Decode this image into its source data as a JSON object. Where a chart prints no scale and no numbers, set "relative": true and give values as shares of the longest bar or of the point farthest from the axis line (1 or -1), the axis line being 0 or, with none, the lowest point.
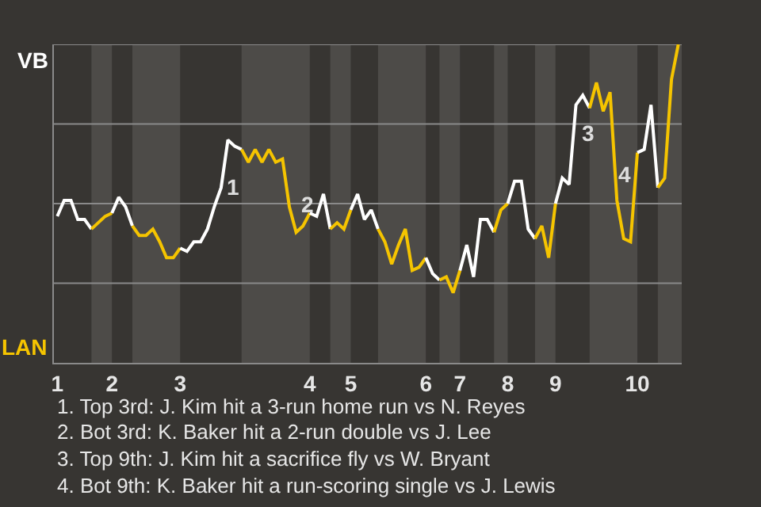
{
  "chart_data": {
    "type": "line",
    "categories": [
      "1",
      null,
      null,
      null,
      null,
      null,
      null,
      null,
      "2",
      null,
      null,
      null,
      null,
      null,
      null,
      null,
      null,
      null,
      "3",
      null,
      null,
      null,
      null,
      null,
      null,
      null,
      null,
      null,
      null,
      null,
      null,
      null,
      null,
      null,
      null,
      null,
      null,
      "4",
      null,
      null,
      null,
      null,
      null,
      "5",
      null,
      null,
      null,
      null,
      null,
      null,
      null,
      null,
      null,
      null,
      "6",
      null,
      null,
      null,
      null,
      "7",
      null,
      null,
      null,
      null,
      null,
      null,
      "8",
      null,
      null,
      null,
      null,
      null,
      null,
      "9",
      null,
      null,
      null,
      null,
      null,
      null,
      null,
      null,
      null,
      null,
      null,
      "10",
      null,
      null,
      null,
      null,
      null,
      null
    ],
    "relative": true,
    "series": [
      {
        "name": "VB",
        "color": "#ffffff",
        "values": [
          0.46,
          0.51,
          0.51,
          0.45,
          0.45,
          0.42,
          null,
          null,
          null,
          null,
          null,
          null,
          null,
          null,
          null,
          null,
          null,
          null,
          null,
          null,
          null,
          null,
          null,
          null,
          null,
          null,
          null,
          null,
          null,
          null,
          null,
          null,
          null,
          null,
          null,
          null,
          null,
          null,
          null,
          null,
          null,
          null,
          null,
          null,
          null,
          null,
          null,
          null,
          null,
          null,
          null,
          null,
          null,
          null,
          null,
          null,
          null,
          null,
          null,
          null,
          null,
          null,
          null,
          null,
          null,
          null,
          null,
          null,
          null,
          null,
          null,
          null,
          null,
          null,
          null,
          null,
          null,
          null,
          null,
          null,
          null,
          null,
          null,
          null,
          null,
          null,
          null,
          null,
          null,
          null,
          null,
          null
        ]
      },
      {
        "name": "LAN",
        "color": "#f5c400",
        "values": [
          null,
          null,
          null,
          null,
          null,
          0.42,
          0.44,
          0.46,
          0.47,
          null,
          null,
          null,
          null,
          null,
          null,
          null,
          null,
          null,
          null,
          null,
          null,
          null,
          null,
          null,
          null,
          null,
          null,
          null,
          null,
          null,
          null,
          null,
          null,
          null,
          null,
          null,
          null,
          null,
          null,
          null,
          null,
          null,
          null,
          null,
          null,
          null,
          null,
          null,
          null,
          null,
          null,
          null,
          null,
          null,
          null,
          null,
          null,
          null,
          null,
          null,
          null,
          null,
          null,
          null,
          null,
          null,
          null,
          null,
          null,
          null,
          null,
          null,
          null,
          null,
          null,
          null,
          null,
          null,
          null,
          null,
          null,
          null,
          null,
          null,
          null,
          null,
          null,
          null,
          null,
          null,
          null,
          null
        ]
      },
      {
        "color": "#ffffff",
        "values": [
          null,
          null,
          null,
          null,
          null,
          null,
          null,
          null,
          0.47,
          0.52,
          0.49,
          0.43,
          null,
          null,
          null,
          null,
          null,
          null,
          null,
          null,
          null,
          null,
          null,
          null,
          null,
          null,
          null,
          null,
          null,
          null,
          null,
          null,
          null,
          null,
          null,
          null,
          null,
          null,
          null,
          null,
          null,
          null,
          null,
          null,
          null,
          null,
          null,
          null,
          null,
          null,
          null,
          null,
          null,
          null,
          null,
          null,
          null,
          null,
          null,
          null,
          null,
          null,
          null,
          null,
          null,
          null,
          null,
          null,
          null,
          null,
          null,
          null,
          null,
          null,
          null,
          null,
          null,
          null,
          null,
          null,
          null,
          null,
          null,
          null,
          null,
          null,
          null,
          null,
          null,
          null,
          null,
          null
        ]
      },
      {
        "color": "#f5c400",
        "values": [
          null,
          null,
          null,
          null,
          null,
          null,
          null,
          null,
          null,
          null,
          null,
          0.43,
          0.4,
          0.4,
          0.42,
          0.38,
          0.33,
          0.33,
          0.36,
          null,
          null,
          null,
          null,
          null,
          null,
          null,
          null,
          null,
          null,
          null,
          null,
          null,
          null,
          null,
          null,
          null,
          null,
          null,
          null,
          null,
          null,
          null,
          null,
          null,
          null,
          null,
          null,
          null,
          null,
          null,
          null,
          null,
          null,
          null,
          null,
          null,
          null,
          null,
          null,
          null,
          null,
          null,
          null,
          null,
          null,
          null,
          null,
          null,
          null,
          null,
          null,
          null,
          null,
          null,
          null,
          null,
          null,
          null,
          null,
          null,
          null,
          null,
          null,
          null,
          null,
          null,
          null,
          null,
          null,
          null,
          null,
          null
        ]
      },
      {
        "color": "#ffffff",
        "values": [
          null,
          null,
          null,
          null,
          null,
          null,
          null,
          null,
          null,
          null,
          null,
          null,
          null,
          null,
          null,
          null,
          null,
          null,
          0.36,
          0.35,
          0.38,
          0.38,
          0.42,
          0.49,
          0.55,
          0.7,
          0.68,
          0.67,
          null,
          null,
          null,
          null,
          null,
          null,
          null,
          null,
          null,
          null,
          null,
          null,
          null,
          null,
          null,
          null,
          null,
          null,
          null,
          null,
          null,
          null,
          null,
          null,
          null,
          null,
          null,
          null,
          null,
          null,
          null,
          null,
          null,
          null,
          null,
          null,
          null,
          null,
          null,
          null,
          null,
          null,
          null,
          null,
          null,
          null,
          null,
          null,
          null,
          null,
          null,
          null,
          null,
          null,
          null,
          null,
          null,
          null,
          null,
          null,
          null,
          null,
          null,
          null
        ]
      },
      {
        "color": "#f5c400",
        "values": [
          null,
          null,
          null,
          null,
          null,
          null,
          null,
          null,
          null,
          null,
          null,
          null,
          null,
          null,
          null,
          null,
          null,
          null,
          null,
          null,
          null,
          null,
          null,
          null,
          null,
          null,
          null,
          0.67,
          0.63,
          0.67,
          0.63,
          0.67,
          0.63,
          0.64,
          0.49,
          0.41,
          0.43,
          0.47,
          null,
          null,
          null,
          null,
          null,
          null,
          null,
          null,
          null,
          null,
          null,
          null,
          null,
          null,
          null,
          null,
          null,
          null,
          null,
          null,
          null,
          null,
          null,
          null,
          null,
          null,
          null,
          null,
          null,
          null,
          null,
          null,
          null,
          null,
          null,
          null,
          null,
          null,
          null,
          null,
          null,
          null,
          null,
          null,
          null,
          null,
          null,
          null,
          null,
          null,
          null,
          null,
          null,
          null
        ]
      },
      {
        "color": "#ffffff",
        "values": [
          null,
          null,
          null,
          null,
          null,
          null,
          null,
          null,
          null,
          null,
          null,
          null,
          null,
          null,
          null,
          null,
          null,
          null,
          null,
          null,
          null,
          null,
          null,
          null,
          null,
          null,
          null,
          null,
          null,
          null,
          null,
          null,
          null,
          null,
          null,
          null,
          null,
          0.47,
          0.46,
          0.53,
          0.42,
          null,
          null,
          null,
          null,
          null,
          null,
          null,
          null,
          null,
          null,
          null,
          null,
          null,
          null,
          null,
          null,
          null,
          null,
          null,
          null,
          null,
          null,
          null,
          null,
          null,
          null,
          null,
          null,
          null,
          null,
          null,
          null,
          null,
          null,
          null,
          null,
          null,
          null,
          null,
          null,
          null,
          null,
          null,
          null,
          null,
          null,
          null,
          null,
          null,
          null,
          null
        ]
      },
      {
        "color": "#f5c400",
        "values": [
          null,
          null,
          null,
          null,
          null,
          null,
          null,
          null,
          null,
          null,
          null,
          null,
          null,
          null,
          null,
          null,
          null,
          null,
          null,
          null,
          null,
          null,
          null,
          null,
          null,
          null,
          null,
          null,
          null,
          null,
          null,
          null,
          null,
          null,
          null,
          null,
          null,
          null,
          null,
          null,
          0.42,
          0.44,
          0.42,
          0.48,
          null,
          null,
          null,
          null,
          null,
          null,
          null,
          null,
          null,
          null,
          null,
          null,
          null,
          null,
          null,
          null,
          null,
          null,
          null,
          null,
          null,
          null,
          null,
          null,
          null,
          null,
          null,
          null,
          null,
          null,
          null,
          null,
          null,
          null,
          null,
          null,
          null,
          null,
          null,
          null,
          null,
          null,
          null,
          null,
          null,
          null,
          null,
          null
        ]
      },
      {
        "color": "#ffffff",
        "values": [
          null,
          null,
          null,
          null,
          null,
          null,
          null,
          null,
          null,
          null,
          null,
          null,
          null,
          null,
          null,
          null,
          null,
          null,
          null,
          null,
          null,
          null,
          null,
          null,
          null,
          null,
          null,
          null,
          null,
          null,
          null,
          null,
          null,
          null,
          null,
          null,
          null,
          null,
          null,
          null,
          null,
          null,
          null,
          0.48,
          0.53,
          0.45,
          0.48,
          0.42,
          null,
          null,
          null,
          null,
          null,
          null,
          null,
          null,
          null,
          null,
          null,
          null,
          null,
          null,
          null,
          null,
          null,
          null,
          null,
          null,
          null,
          null,
          null,
          null,
          null,
          null,
          null,
          null,
          null,
          null,
          null,
          null,
          null,
          null,
          null,
          null,
          null,
          null,
          null,
          null,
          null,
          null,
          null,
          null
        ]
      },
      {
        "color": "#f5c400",
        "values": [
          null,
          null,
          null,
          null,
          null,
          null,
          null,
          null,
          null,
          null,
          null,
          null,
          null,
          null,
          null,
          null,
          null,
          null,
          null,
          null,
          null,
          null,
          null,
          null,
          null,
          null,
          null,
          null,
          null,
          null,
          null,
          null,
          null,
          null,
          null,
          null,
          null,
          null,
          null,
          null,
          null,
          null,
          null,
          null,
          null,
          null,
          null,
          0.42,
          0.38,
          0.31,
          0.37,
          0.42,
          0.29,
          0.3,
          0.33,
          null,
          null,
          null,
          null,
          null,
          null,
          null,
          null,
          null,
          null,
          null,
          null,
          null,
          null,
          null,
          null,
          null,
          null,
          null,
          null,
          null,
          null,
          null,
          null,
          null,
          null,
          null,
          null,
          null,
          null,
          null,
          null,
          null,
          null,
          null,
          null,
          null
        ]
      },
      {
        "color": "#ffffff",
        "values": [
          null,
          null,
          null,
          null,
          null,
          null,
          null,
          null,
          null,
          null,
          null,
          null,
          null,
          null,
          null,
          null,
          null,
          null,
          null,
          null,
          null,
          null,
          null,
          null,
          null,
          null,
          null,
          null,
          null,
          null,
          null,
          null,
          null,
          null,
          null,
          null,
          null,
          null,
          null,
          null,
          null,
          null,
          null,
          null,
          null,
          null,
          null,
          null,
          null,
          null,
          null,
          null,
          null,
          null,
          0.33,
          0.28,
          0.26,
          null,
          null,
          null,
          null,
          null,
          null,
          null,
          null,
          null,
          null,
          null,
          null,
          null,
          null,
          null,
          null,
          null,
          null,
          null,
          null,
          null,
          null,
          null,
          null,
          null,
          null,
          null,
          null,
          null,
          null,
          null,
          null,
          null,
          null,
          null
        ]
      },
      {
        "color": "#f5c400",
        "values": [
          null,
          null,
          null,
          null,
          null,
          null,
          null,
          null,
          null,
          null,
          null,
          null,
          null,
          null,
          null,
          null,
          null,
          null,
          null,
          null,
          null,
          null,
          null,
          null,
          null,
          null,
          null,
          null,
          null,
          null,
          null,
          null,
          null,
          null,
          null,
          null,
          null,
          null,
          null,
          null,
          null,
          null,
          null,
          null,
          null,
          null,
          null,
          null,
          null,
          null,
          null,
          null,
          null,
          null,
          null,
          null,
          0.26,
          0.27,
          0.22,
          0.29,
          null,
          null,
          null,
          null,
          null,
          null,
          null,
          null,
          null,
          null,
          null,
          null,
          null,
          null,
          null,
          null,
          null,
          null,
          null,
          null,
          null,
          null,
          null,
          null,
          null,
          null,
          null,
          null,
          null,
          null,
          null,
          null
        ]
      },
      {
        "color": "#ffffff",
        "values": [
          null,
          null,
          null,
          null,
          null,
          null,
          null,
          null,
          null,
          null,
          null,
          null,
          null,
          null,
          null,
          null,
          null,
          null,
          null,
          null,
          null,
          null,
          null,
          null,
          null,
          null,
          null,
          null,
          null,
          null,
          null,
          null,
          null,
          null,
          null,
          null,
          null,
          null,
          null,
          null,
          null,
          null,
          null,
          null,
          null,
          null,
          null,
          null,
          null,
          null,
          null,
          null,
          null,
          null,
          null,
          null,
          null,
          null,
          null,
          0.29,
          0.37,
          0.27,
          0.45,
          0.45,
          0.41,
          null,
          null,
          null,
          null,
          null,
          null,
          null,
          null,
          null,
          null,
          null,
          null,
          null,
          null,
          null,
          null,
          null,
          null,
          null,
          null,
          null,
          null,
          null,
          null,
          null,
          null,
          null
        ]
      },
      {
        "color": "#f5c400",
        "values": [
          null,
          null,
          null,
          null,
          null,
          null,
          null,
          null,
          null,
          null,
          null,
          null,
          null,
          null,
          null,
          null,
          null,
          null,
          null,
          null,
          null,
          null,
          null,
          null,
          null,
          null,
          null,
          null,
          null,
          null,
          null,
          null,
          null,
          null,
          null,
          null,
          null,
          null,
          null,
          null,
          null,
          null,
          null,
          null,
          null,
          null,
          null,
          null,
          null,
          null,
          null,
          null,
          null,
          null,
          null,
          null,
          null,
          null,
          null,
          null,
          null,
          null,
          null,
          null,
          0.41,
          0.48,
          0.5,
          null,
          null,
          null,
          null,
          null,
          null,
          null,
          null,
          null,
          null,
          null,
          null,
          null,
          null,
          null,
          null,
          null,
          null,
          null,
          null,
          null,
          null,
          null,
          null,
          null
        ]
      },
      {
        "color": "#ffffff",
        "values": [
          null,
          null,
          null,
          null,
          null,
          null,
          null,
          null,
          null,
          null,
          null,
          null,
          null,
          null,
          null,
          null,
          null,
          null,
          null,
          null,
          null,
          null,
          null,
          null,
          null,
          null,
          null,
          null,
          null,
          null,
          null,
          null,
          null,
          null,
          null,
          null,
          null,
          null,
          null,
          null,
          null,
          null,
          null,
          null,
          null,
          null,
          null,
          null,
          null,
          null,
          null,
          null,
          null,
          null,
          null,
          null,
          null,
          null,
          null,
          null,
          null,
          null,
          null,
          null,
          null,
          null,
          0.5,
          0.57,
          0.57,
          0.42,
          0.39,
          null,
          null,
          null,
          null,
          null,
          null,
          null,
          null,
          null,
          null,
          null,
          null,
          null,
          null,
          null,
          null,
          null,
          null,
          null,
          null,
          null
        ]
      },
      {
        "color": "#f5c400",
        "values": [
          null,
          null,
          null,
          null,
          null,
          null,
          null,
          null,
          null,
          null,
          null,
          null,
          null,
          null,
          null,
          null,
          null,
          null,
          null,
          null,
          null,
          null,
          null,
          null,
          null,
          null,
          null,
          null,
          null,
          null,
          null,
          null,
          null,
          null,
          null,
          null,
          null,
          null,
          null,
          null,
          null,
          null,
          null,
          null,
          null,
          null,
          null,
          null,
          null,
          null,
          null,
          null,
          null,
          null,
          null,
          null,
          null,
          null,
          null,
          null,
          null,
          null,
          null,
          null,
          null,
          null,
          null,
          null,
          null,
          null,
          0.39,
          0.43,
          0.33,
          0.5,
          null,
          null,
          null,
          null,
          null,
          null,
          null,
          null,
          null,
          null,
          null,
          null,
          null,
          null,
          null,
          null,
          null,
          null
        ]
      },
      {
        "color": "#ffffff",
        "values": [
          null,
          null,
          null,
          null,
          null,
          null,
          null,
          null,
          null,
          null,
          null,
          null,
          null,
          null,
          null,
          null,
          null,
          null,
          null,
          null,
          null,
          null,
          null,
          null,
          null,
          null,
          null,
          null,
          null,
          null,
          null,
          null,
          null,
          null,
          null,
          null,
          null,
          null,
          null,
          null,
          null,
          null,
          null,
          null,
          null,
          null,
          null,
          null,
          null,
          null,
          null,
          null,
          null,
          null,
          null,
          null,
          null,
          null,
          null,
          null,
          null,
          null,
          null,
          null,
          null,
          null,
          null,
          null,
          null,
          null,
          null,
          null,
          null,
          0.5,
          0.58,
          0.56,
          0.81,
          0.84,
          0.8,
          null,
          null,
          null,
          null,
          null,
          null,
          null,
          null,
          null,
          null,
          null,
          null,
          null
        ]
      },
      {
        "color": "#f5c400",
        "values": [
          null,
          null,
          null,
          null,
          null,
          null,
          null,
          null,
          null,
          null,
          null,
          null,
          null,
          null,
          null,
          null,
          null,
          null,
          null,
          null,
          null,
          null,
          null,
          null,
          null,
          null,
          null,
          null,
          null,
          null,
          null,
          null,
          null,
          null,
          null,
          null,
          null,
          null,
          null,
          null,
          null,
          null,
          null,
          null,
          null,
          null,
          null,
          null,
          null,
          null,
          null,
          null,
          null,
          null,
          null,
          null,
          null,
          null,
          null,
          null,
          null,
          null,
          null,
          null,
          null,
          null,
          null,
          null,
          null,
          null,
          null,
          null,
          null,
          null,
          null,
          null,
          null,
          null,
          0.8,
          0.88,
          0.79,
          0.85,
          0.51,
          0.39,
          0.38,
          0.66,
          null,
          null,
          null,
          null,
          null,
          null
        ]
      },
      {
        "color": "#ffffff",
        "values": [
          null,
          null,
          null,
          null,
          null,
          null,
          null,
          null,
          null,
          null,
          null,
          null,
          null,
          null,
          null,
          null,
          null,
          null,
          null,
          null,
          null,
          null,
          null,
          null,
          null,
          null,
          null,
          null,
          null,
          null,
          null,
          null,
          null,
          null,
          null,
          null,
          null,
          null,
          null,
          null,
          null,
          null,
          null,
          null,
          null,
          null,
          null,
          null,
          null,
          null,
          null,
          null,
          null,
          null,
          null,
          null,
          null,
          null,
          null,
          null,
          null,
          null,
          null,
          null,
          null,
          null,
          null,
          null,
          null,
          null,
          null,
          null,
          null,
          null,
          null,
          null,
          null,
          null,
          null,
          null,
          null,
          null,
          null,
          null,
          null,
          0.66,
          0.67,
          0.81,
          0.55,
          null,
          null,
          null
        ]
      },
      {
        "color": "#f5c400",
        "values": [
          null,
          null,
          null,
          null,
          null,
          null,
          null,
          null,
          null,
          null,
          null,
          null,
          null,
          null,
          null,
          null,
          null,
          null,
          null,
          null,
          null,
          null,
          null,
          null,
          null,
          null,
          null,
          null,
          null,
          null,
          null,
          null,
          null,
          null,
          null,
          null,
          null,
          null,
          null,
          null,
          null,
          null,
          null,
          null,
          null,
          null,
          null,
          null,
          null,
          null,
          null,
          null,
          null,
          null,
          null,
          null,
          null,
          null,
          null,
          null,
          null,
          null,
          null,
          null,
          null,
          null,
          null,
          null,
          null,
          null,
          null,
          null,
          null,
          null,
          null,
          null,
          null,
          null,
          null,
          null,
          null,
          null,
          null,
          null,
          null,
          null,
          null,
          null,
          0.55,
          0.58,
          0.89,
          1
        ]
      }
    ],
    "ref_lines": [
      {
        "axis": "y",
        "value": 0.25,
        "color": "#8a8a8a"
      },
      {
        "axis": "y",
        "value": 0.5,
        "color": "#8a8a8a"
      },
      {
        "axis": "y",
        "value": 0.75,
        "color": "#8a8a8a"
      },
      {
        "axis": "y",
        "value": 1,
        "color": "#8a8a8a"
      }
    ],
    "annotations": [
      "1",
      "2",
      "3",
      "4",
      "1. Top 3rd: J. Kim hit a 3-run home run vs N. Reyes",
      "2. Bot 3rd: K. Baker hit a 2-run double vs J. Lee",
      "3. Top 9th: J. Kim hit a sacrifice fly vs W. Bryant",
      "4. Bot 9th: K. Baker hit a run-scoring single vs J. Lewis"
    ],
    "marker": "none",
    "line_style": "solid"
  }
}
